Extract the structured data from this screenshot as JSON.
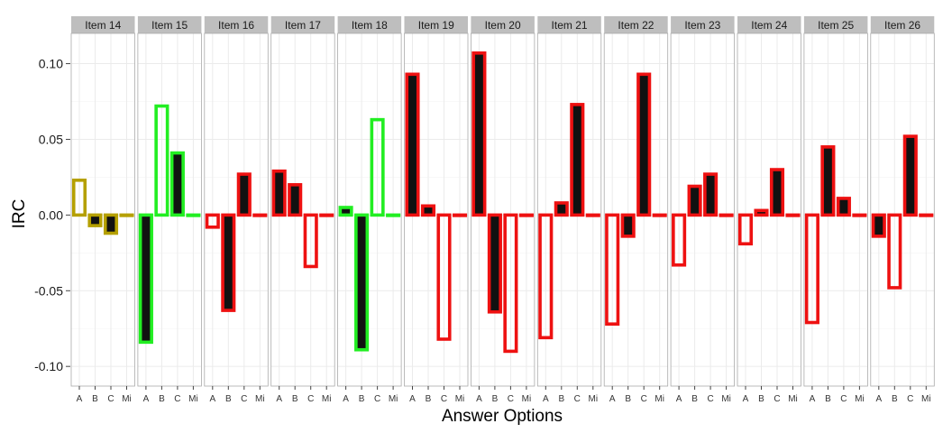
{
  "chart_data": {
    "type": "bar",
    "xlabel": "Answer Options",
    "ylabel": "IRC",
    "ylim": [
      -0.113,
      0.12
    ],
    "yticks": [
      0.1,
      0.05,
      0.0,
      -0.05,
      -0.1
    ],
    "ytick_labels": [
      "0.10",
      "0.05",
      "0.00",
      "-0.05",
      "-0.10"
    ],
    "categories": [
      "A",
      "B",
      "C",
      "Mi"
    ],
    "grid": true,
    "legend": "none",
    "colors": {
      "olive": "#b5a000",
      "green": "#22ee22",
      "red": "#ee1111",
      "fill": "#111111",
      "strip_bg": "#bebebe",
      "panel_border": "#aaaaaa",
      "grid": "#ebebeb"
    },
    "panels": [
      {
        "name": "Item 14",
        "color": "olive",
        "values": [
          0.023,
          -0.007,
          -0.012,
          0.0
        ],
        "filled": [
          false,
          true,
          true,
          true
        ]
      },
      {
        "name": "Item 15",
        "color": "green",
        "values": [
          -0.084,
          0.072,
          0.041,
          0.0
        ],
        "filled": [
          true,
          false,
          true,
          true
        ]
      },
      {
        "name": "Item 16",
        "color": "red",
        "values": [
          -0.008,
          -0.063,
          0.027,
          0.0
        ],
        "filled": [
          false,
          true,
          true,
          true
        ]
      },
      {
        "name": "Item 17",
        "color": "red",
        "values": [
          0.029,
          0.02,
          -0.034,
          0.0
        ],
        "filled": [
          true,
          true,
          false,
          true
        ]
      },
      {
        "name": "Item 18",
        "color": "green",
        "values": [
          0.005,
          -0.089,
          0.063,
          0.0
        ],
        "filled": [
          true,
          true,
          false,
          true
        ]
      },
      {
        "name": "Item 19",
        "color": "red",
        "values": [
          0.093,
          0.006,
          -0.082,
          0.0
        ],
        "filled": [
          true,
          true,
          false,
          true
        ]
      },
      {
        "name": "Item 20",
        "color": "red",
        "values": [
          0.107,
          -0.064,
          -0.09,
          0.0
        ],
        "filled": [
          true,
          true,
          false,
          true
        ]
      },
      {
        "name": "Item 21",
        "color": "red",
        "values": [
          -0.081,
          0.008,
          0.073,
          0.0
        ],
        "filled": [
          false,
          true,
          true,
          true
        ]
      },
      {
        "name": "Item 22",
        "color": "red",
        "values": [
          -0.072,
          -0.014,
          0.093,
          0.0
        ],
        "filled": [
          false,
          true,
          true,
          true
        ]
      },
      {
        "name": "Item 23",
        "color": "red",
        "values": [
          -0.033,
          0.019,
          0.027,
          0.0
        ],
        "filled": [
          false,
          true,
          true,
          true
        ]
      },
      {
        "name": "Item 24",
        "color": "red",
        "values": [
          -0.019,
          0.003,
          0.03,
          0.0
        ],
        "filled": [
          false,
          true,
          true,
          true
        ]
      },
      {
        "name": "Item 25",
        "color": "red",
        "values": [
          -0.071,
          0.045,
          0.011,
          0.0
        ],
        "filled": [
          false,
          true,
          true,
          true
        ]
      },
      {
        "name": "Item 26",
        "color": "red",
        "values": [
          -0.014,
          -0.048,
          0.052,
          0.0
        ],
        "filled": [
          true,
          false,
          true,
          true
        ]
      }
    ]
  }
}
